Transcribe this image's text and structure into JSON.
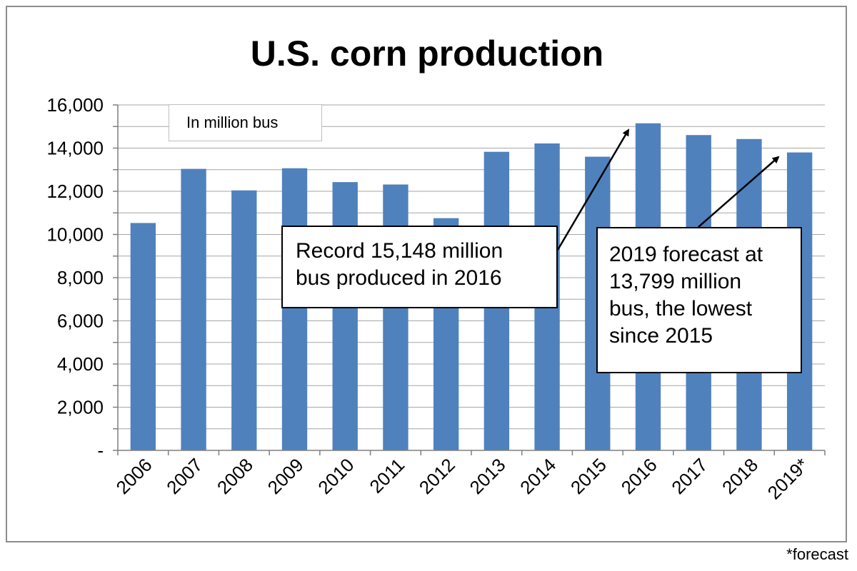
{
  "chart_data": {
    "type": "bar",
    "title": "U.S. corn production",
    "unit_label": "In million bus",
    "categories": [
      "2006",
      "2007",
      "2008",
      "2009",
      "2010",
      "2011",
      "2012",
      "2013",
      "2014",
      "2015",
      "2016",
      "2017",
      "2018",
      "2019*"
    ],
    "values": [
      10531,
      13038,
      12043,
      13067,
      12425,
      12314,
      10755,
      13829,
      14216,
      13602,
      15148,
      14604,
      14420,
      13799
    ],
    "ylim": [
      0,
      16000
    ],
    "yticks": [
      0,
      2000,
      4000,
      6000,
      8000,
      10000,
      12000,
      14000,
      16000
    ],
    "ytick_labels": [
      "-",
      "2,000",
      "4,000",
      "6,000",
      "8,000",
      "10,000",
      "12,000",
      "14,000",
      "16,000"
    ],
    "grid": true,
    "bar_color": "#4f81bd",
    "annotations": [
      {
        "text": "Record 15,148 million bus produced in 2016",
        "lines": [
          "Record 15,148 million",
          "bus produced in 2016"
        ],
        "target": "2016"
      },
      {
        "text": "2019 forecast at 13,799 million bus, the lowest since 2015",
        "lines": [
          "2019 forecast at",
          "13,799 million",
          "bus, the lowest",
          "since 2015"
        ],
        "target": "2019*"
      }
    ]
  },
  "footnote": "*forecast"
}
